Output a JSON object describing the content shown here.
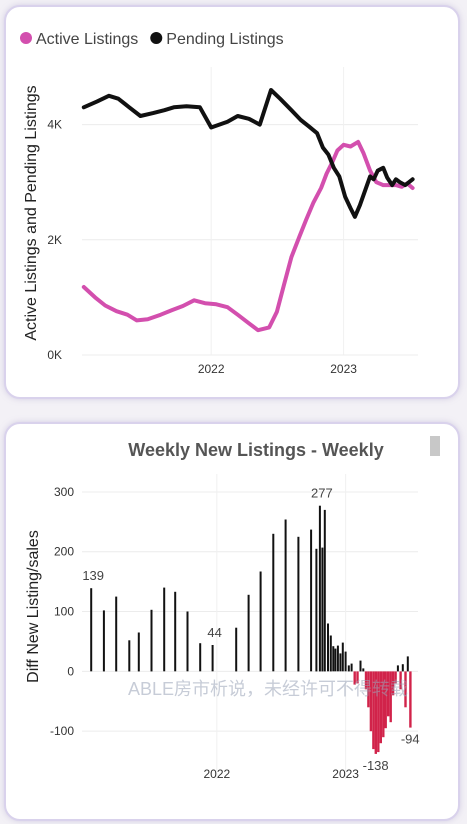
{
  "chart_data": [
    {
      "type": "line",
      "title": "",
      "ylabel": "Active Listings and Pending Listings",
      "xlabel": "",
      "x_ticks": [
        "2022",
        "2023"
      ],
      "y_ticks": [
        "0K",
        "2K",
        "4K"
      ],
      "ylim": [
        0,
        5000
      ],
      "xlim": [
        "2021-01-10",
        "2023-07-25"
      ],
      "legend": "top-left",
      "grid": true,
      "series": [
        {
          "name": "Active Listings",
          "color": "#d34fae",
          "points": [
            [
              "2021-01-15",
              1180
            ],
            [
              "2021-02-15",
              1000
            ],
            [
              "2021-03-15",
              860
            ],
            [
              "2021-04-15",
              760
            ],
            [
              "2021-05-15",
              700
            ],
            [
              "2021-06-10",
              600
            ],
            [
              "2021-07-10",
              620
            ],
            [
              "2021-08-15",
              700
            ],
            [
              "2021-09-15",
              780
            ],
            [
              "2021-10-15",
              850
            ],
            [
              "2021-11-15",
              950
            ],
            [
              "2021-12-15",
              900
            ],
            [
              "2022-01-15",
              880
            ],
            [
              "2022-02-15",
              830
            ],
            [
              "2022-03-15",
              700
            ],
            [
              "2022-04-15",
              550
            ],
            [
              "2022-05-10",
              430
            ],
            [
              "2022-06-10",
              480
            ],
            [
              "2022-07-01",
              750
            ],
            [
              "2022-07-20",
              1200
            ],
            [
              "2022-08-10",
              1700
            ],
            [
              "2022-09-01",
              2050
            ],
            [
              "2022-09-20",
              2350
            ],
            [
              "2022-10-10",
              2650
            ],
            [
              "2022-10-31",
              2900
            ],
            [
              "2022-11-15",
              3150
            ],
            [
              "2022-12-01",
              3350
            ],
            [
              "2022-12-15",
              3550
            ],
            [
              "2023-01-01",
              3650
            ],
            [
              "2023-01-20",
              3620
            ],
            [
              "2023-02-10",
              3700
            ],
            [
              "2023-02-25",
              3500
            ],
            [
              "2023-03-15",
              3200
            ],
            [
              "2023-04-01",
              3000
            ],
            [
              "2023-04-20",
              2950
            ],
            [
              "2023-05-10",
              2950
            ],
            [
              "2023-05-25",
              2950
            ],
            [
              "2023-06-10",
              2920
            ],
            [
              "2023-06-25",
              2980
            ],
            [
              "2023-07-10",
              2900
            ]
          ]
        },
        {
          "name": "Pending Listings",
          "color": "#111111",
          "points": [
            [
              "2021-01-15",
              4300
            ],
            [
              "2021-02-20",
              4400
            ],
            [
              "2021-03-25",
              4500
            ],
            [
              "2021-04-20",
              4450
            ],
            [
              "2021-05-20",
              4300
            ],
            [
              "2021-06-20",
              4150
            ],
            [
              "2021-07-25",
              4200
            ],
            [
              "2021-08-25",
              4250
            ],
            [
              "2021-09-20",
              4300
            ],
            [
              "2021-10-25",
              4320
            ],
            [
              "2021-12-01",
              4300
            ],
            [
              "2022-01-01",
              3950
            ],
            [
              "2022-02-15",
              4050
            ],
            [
              "2022-03-15",
              4150
            ],
            [
              "2022-04-15",
              4100
            ],
            [
              "2022-05-15",
              4000
            ],
            [
              "2022-06-15",
              4600
            ],
            [
              "2022-07-10",
              4450
            ],
            [
              "2022-08-10",
              4250
            ],
            [
              "2022-09-05",
              4080
            ],
            [
              "2022-10-01",
              3950
            ],
            [
              "2022-10-20",
              3850
            ],
            [
              "2022-11-05",
              3600
            ],
            [
              "2022-11-20",
              3480
            ],
            [
              "2022-12-05",
              3250
            ],
            [
              "2022-12-20",
              3100
            ],
            [
              "2023-01-05",
              2750
            ],
            [
              "2023-01-20",
              2550
            ],
            [
              "2023-02-01",
              2400
            ],
            [
              "2023-02-15",
              2600
            ],
            [
              "2023-03-01",
              2850
            ],
            [
              "2023-03-15",
              3100
            ],
            [
              "2023-03-25",
              3050
            ],
            [
              "2023-04-05",
              3200
            ],
            [
              "2023-04-20",
              3250
            ],
            [
              "2023-05-01",
              3080
            ],
            [
              "2023-05-15",
              2950
            ],
            [
              "2023-05-25",
              3050
            ],
            [
              "2023-06-05",
              3000
            ],
            [
              "2023-06-20",
              2950
            ],
            [
              "2023-07-10",
              3050
            ]
          ]
        }
      ]
    },
    {
      "type": "bar",
      "title": "Weekly New Listings - Weekly",
      "ylabel": "Diff New Listing/sales",
      "xlabel": "",
      "x_ticks": [
        "2022",
        "2023"
      ],
      "y_ticks": [
        "300",
        "200",
        "100",
        "0",
        "-100"
      ],
      "ylim": [
        -180,
        330
      ],
      "xlim": [
        "2021-01-01",
        "2023-07-25"
      ],
      "grid": true,
      "positive_color": "#111111",
      "negative_color": "#d1234a",
      "bars": [
        [
          "2021-01-10",
          139
        ],
        [
          "2021-02-15",
          102
        ],
        [
          "2021-03-22",
          125
        ],
        [
          "2021-04-28",
          52
        ],
        [
          "2021-05-25",
          65
        ],
        [
          "2021-06-30",
          103
        ],
        [
          "2021-08-05",
          140
        ],
        [
          "2021-09-05",
          133
        ],
        [
          "2021-10-10",
          100
        ],
        [
          "2021-11-15",
          47
        ],
        [
          "2021-12-20",
          44
        ],
        [
          "2022-02-25",
          73
        ],
        [
          "2022-04-01",
          128
        ],
        [
          "2022-05-05",
          167
        ],
        [
          "2022-06-10",
          230
        ],
        [
          "2022-07-15",
          254
        ],
        [
          "2022-08-20",
          225
        ],
        [
          "2022-09-25",
          237
        ],
        [
          "2022-10-10",
          205
        ],
        [
          "2022-10-20",
          277
        ],
        [
          "2022-10-27",
          207
        ],
        [
          "2022-11-03",
          270
        ],
        [
          "2022-11-12",
          80
        ],
        [
          "2022-11-20",
          60
        ],
        [
          "2022-11-27",
          42
        ],
        [
          "2022-12-03",
          38
        ],
        [
          "2022-12-10",
          43
        ],
        [
          "2022-12-17",
          30
        ],
        [
          "2022-12-24",
          48
        ],
        [
          "2023-01-01",
          33
        ],
        [
          "2023-01-10",
          10
        ],
        [
          "2023-01-18",
          13
        ],
        [
          "2023-01-26",
          -22
        ],
        [
          "2023-02-03",
          -20
        ],
        [
          "2023-02-12",
          18
        ],
        [
          "2023-02-20",
          5
        ],
        [
          "2023-02-27",
          -30
        ],
        [
          "2023-03-06",
          -60
        ],
        [
          "2023-03-13",
          -100
        ],
        [
          "2023-03-20",
          -130
        ],
        [
          "2023-03-27",
          -138
        ],
        [
          "2023-04-03",
          -135
        ],
        [
          "2023-04-10",
          -120
        ],
        [
          "2023-04-17",
          -110
        ],
        [
          "2023-04-24",
          -95
        ],
        [
          "2023-05-01",
          -75
        ],
        [
          "2023-05-08",
          -85
        ],
        [
          "2023-05-15",
          -40
        ],
        [
          "2023-05-22",
          -20
        ],
        [
          "2023-05-29",
          10
        ],
        [
          "2023-06-05",
          -30
        ],
        [
          "2023-06-12",
          12
        ],
        [
          "2023-06-19",
          -60
        ],
        [
          "2023-06-26",
          25
        ],
        [
          "2023-07-03",
          -94
        ]
      ],
      "data_labels": [
        {
          "date": "2021-01-10",
          "text": "139"
        },
        {
          "date": "2021-12-20",
          "text": "44"
        },
        {
          "date": "2022-10-20",
          "text": "277"
        },
        {
          "date": "2023-03-27",
          "text": "-138"
        },
        {
          "date": "2023-07-03",
          "text": "-94"
        }
      ]
    }
  ],
  "watermark": "ABLE房市析说，未经许可不得转载"
}
